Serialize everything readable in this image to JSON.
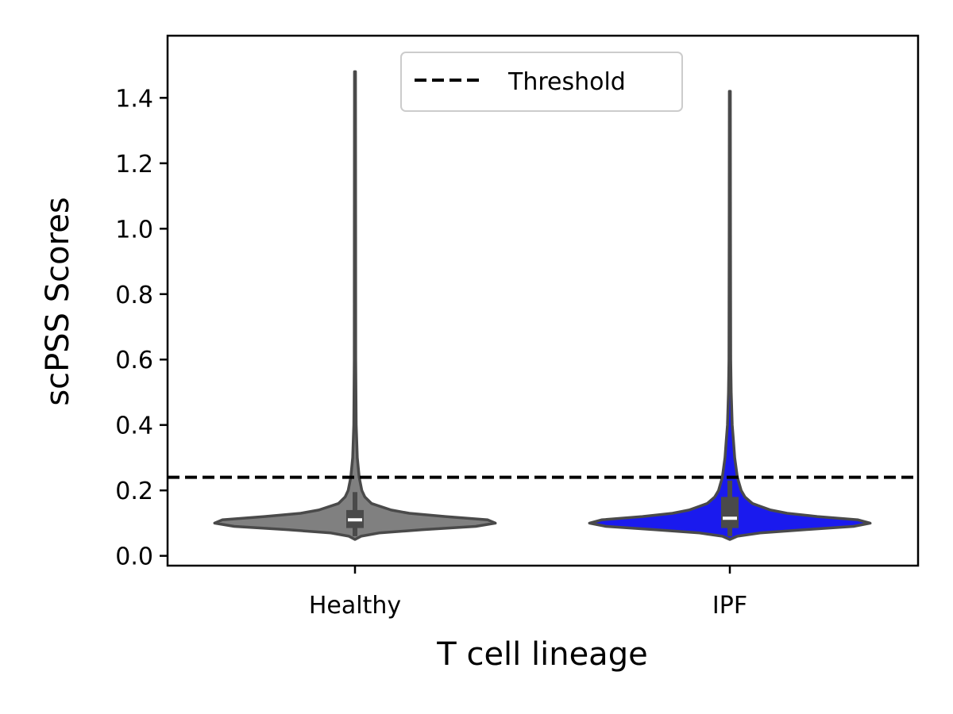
{
  "chart_data": {
    "type": "violin",
    "title": "",
    "xlabel": "T cell lineage",
    "ylabel": "scPSS Scores",
    "ylim": [
      -0.03,
      1.59
    ],
    "yticks": [
      0.0,
      0.2,
      0.4,
      0.6,
      0.8,
      1.0,
      1.2,
      1.4
    ],
    "ytick_labels": [
      "0.0",
      "0.2",
      "0.4",
      "0.6",
      "0.8",
      "1.0",
      "1.2",
      "1.4"
    ],
    "categories": [
      "Healthy",
      "IPF"
    ],
    "colors": {
      "Healthy": "#808080",
      "IPF": "#1a1aee",
      "outline": "#4a4a4a",
      "threshold": "#000000"
    },
    "legend": {
      "position": "top-center",
      "entries": [
        "Threshold"
      ]
    },
    "threshold": 0.24,
    "violins": [
      {
        "name": "Healthy",
        "min": 0.05,
        "max": 1.48,
        "q1": 0.085,
        "median": 0.11,
        "q3": 0.14,
        "whisker_low": 0.06,
        "whisker_high": 0.195,
        "profile": [
          [
            0.05,
            0.0
          ],
          [
            0.06,
            0.04
          ],
          [
            0.07,
            0.16
          ],
          [
            0.08,
            0.45
          ],
          [
            0.09,
            0.8
          ],
          [
            0.1,
            0.93
          ],
          [
            0.11,
            0.88
          ],
          [
            0.12,
            0.6
          ],
          [
            0.13,
            0.36
          ],
          [
            0.14,
            0.24
          ],
          [
            0.16,
            0.11
          ],
          [
            0.18,
            0.065
          ],
          [
            0.2,
            0.045
          ],
          [
            0.24,
            0.028
          ],
          [
            0.3,
            0.015
          ],
          [
            0.4,
            0.008
          ],
          [
            0.6,
            0.005
          ],
          [
            1.0,
            0.004
          ],
          [
            1.48,
            0.003
          ]
        ]
      },
      {
        "name": "IPF",
        "min": 0.05,
        "max": 1.42,
        "q1": 0.085,
        "median": 0.115,
        "q3": 0.18,
        "whisker_low": 0.06,
        "whisker_high": 0.23,
        "profile": [
          [
            0.05,
            0.0
          ],
          [
            0.06,
            0.05
          ],
          [
            0.07,
            0.2
          ],
          [
            0.08,
            0.5
          ],
          [
            0.09,
            0.82
          ],
          [
            0.1,
            0.93
          ],
          [
            0.11,
            0.85
          ],
          [
            0.12,
            0.58
          ],
          [
            0.13,
            0.38
          ],
          [
            0.14,
            0.27
          ],
          [
            0.16,
            0.15
          ],
          [
            0.18,
            0.1
          ],
          [
            0.2,
            0.075
          ],
          [
            0.24,
            0.05
          ],
          [
            0.3,
            0.032
          ],
          [
            0.35,
            0.024
          ],
          [
            0.4,
            0.016
          ],
          [
            0.5,
            0.009
          ],
          [
            0.6,
            0.006
          ],
          [
            1.0,
            0.004
          ],
          [
            1.42,
            0.003
          ]
        ]
      }
    ]
  }
}
